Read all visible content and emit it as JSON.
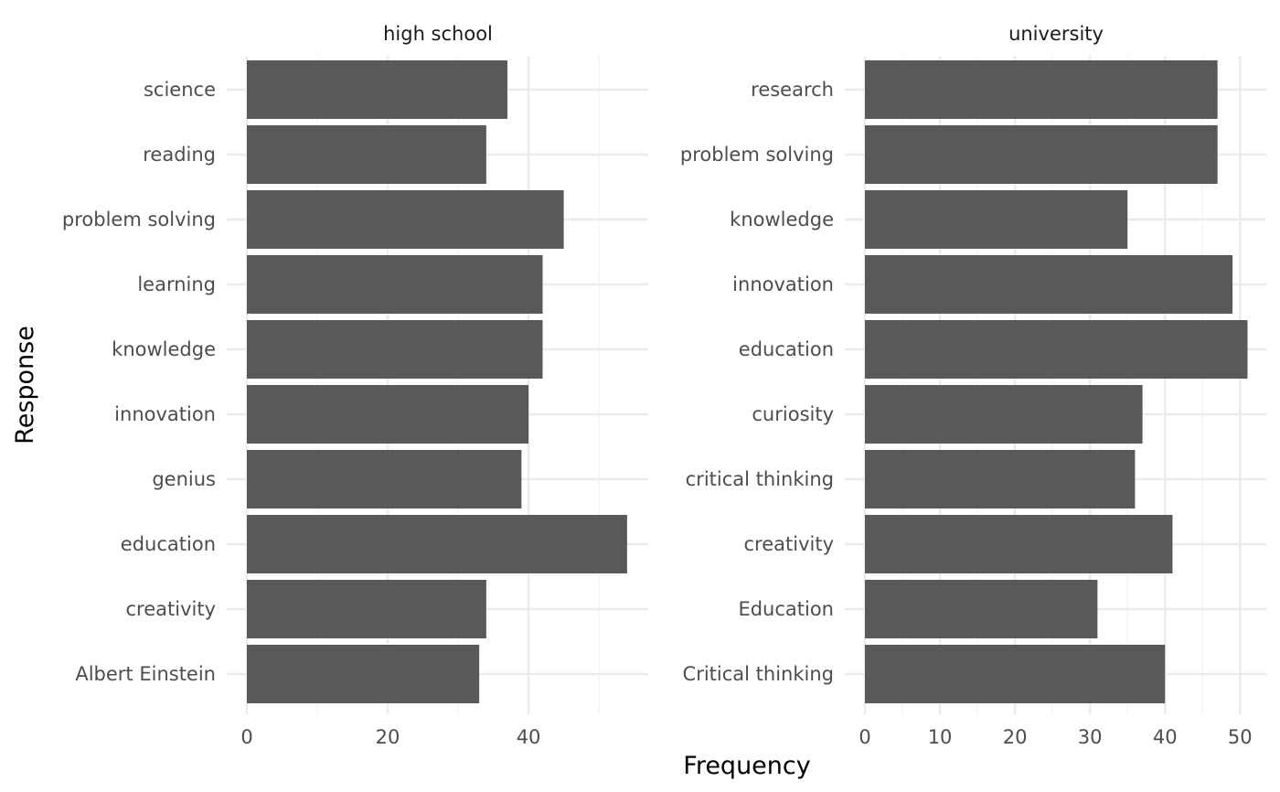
{
  "chart_data": {
    "type": "bar",
    "orientation": "horizontal",
    "xlabel": "Frequency",
    "ylabel": "Response",
    "grid": true,
    "facets": [
      {
        "title": "high school",
        "categories": [
          "science",
          "reading",
          "problem solving",
          "learning",
          "knowledge",
          "innovation",
          "genius",
          "education",
          "creativity",
          "Albert Einstein"
        ],
        "values": [
          37,
          34,
          45,
          42,
          42,
          40,
          39,
          54,
          34,
          33
        ],
        "xlim": [
          0,
          57
        ],
        "xticks": [
          0,
          20,
          40
        ],
        "xminor": [
          10,
          30,
          50
        ]
      },
      {
        "title": "university",
        "categories": [
          "research",
          "problem solving",
          "knowledge",
          "innovation",
          "education",
          "curiosity",
          "critical thinking",
          "creativity",
          "Education",
          "Critical thinking"
        ],
        "values": [
          47,
          47,
          35,
          49,
          51,
          37,
          36,
          41,
          31,
          40
        ],
        "xlim": [
          0,
          53.5
        ],
        "xticks": [
          0,
          10,
          20,
          30,
          40,
          50
        ],
        "xminor": [
          5,
          15,
          25,
          35,
          45
        ]
      }
    ]
  }
}
